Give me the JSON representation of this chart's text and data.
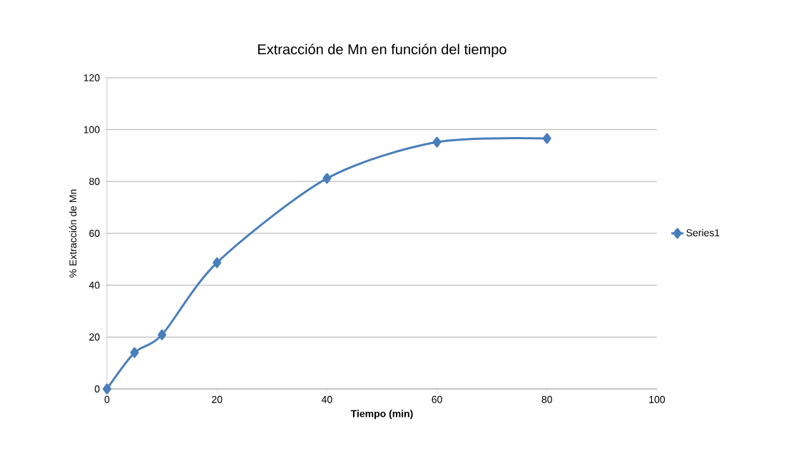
{
  "chart_data": {
    "type": "line",
    "title": "Extracción de Mn en función del tiempo",
    "xlabel": "**Tiempo (min)**",
    "ylabel": "% Extracción de Mn",
    "x": [
      0,
      5,
      10,
      20,
      40,
      60,
      80
    ],
    "series": [
      {
        "name": "Series1",
        "color": "#4a7ebb",
        "values": [
          0,
          14,
          20.9,
          48.7,
          81.2,
          95.2,
          96.6
        ]
      }
    ],
    "xlim": [
      0,
      100
    ],
    "ylim": [
      0,
      120
    ],
    "xticks": [
      0,
      20,
      40,
      60,
      80,
      100
    ],
    "yticks": [
      0,
      20,
      40,
      60,
      80,
      100,
      120
    ],
    "grid": "y",
    "legend": "right",
    "marker": "diamond",
    "line_style": "solid"
  }
}
